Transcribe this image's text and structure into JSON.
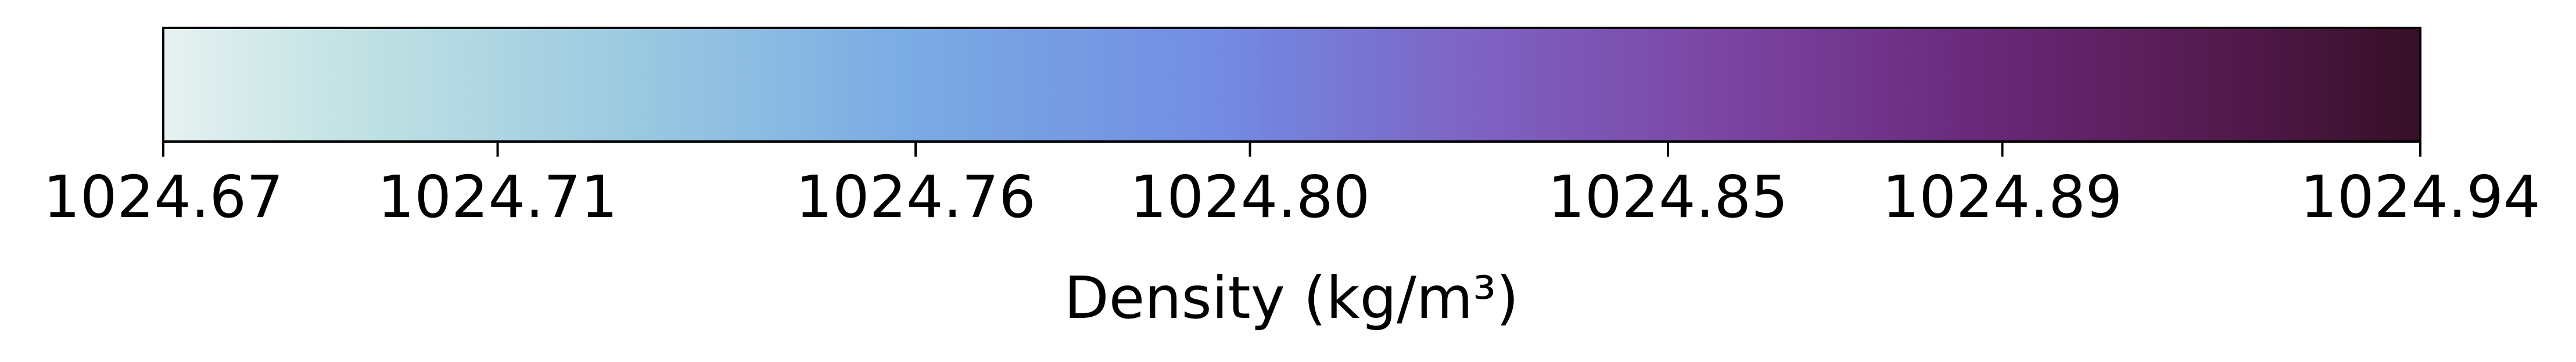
{
  "chart_data": {
    "type": "colorbar",
    "orientation": "horizontal",
    "colormap": "dense",
    "xlabel": "Density (kg/m³)",
    "range": [
      1024.67,
      1024.94
    ],
    "ticks": [
      {
        "value": 1024.67,
        "label": "1024.67"
      },
      {
        "value": 1024.71,
        "label": "1024.71"
      },
      {
        "value": 1024.76,
        "label": "1024.76"
      },
      {
        "value": 1024.8,
        "label": "1024.80"
      },
      {
        "value": 1024.85,
        "label": "1024.85"
      },
      {
        "value": 1024.89,
        "label": "1024.89"
      },
      {
        "value": 1024.94,
        "label": "1024.94"
      }
    ],
    "color_stops": [
      {
        "position": 0.0,
        "color": "#e6f1f1"
      },
      {
        "position": 0.08,
        "color": "#c3e3e4"
      },
      {
        "position": 0.2,
        "color": "#9dcbe1"
      },
      {
        "position": 0.33,
        "color": "#7aabe3"
      },
      {
        "position": 0.46,
        "color": "#738ee3"
      },
      {
        "position": 0.5,
        "color": "#7580da"
      },
      {
        "position": 0.58,
        "color": "#7e63c4"
      },
      {
        "position": 0.69,
        "color": "#7b45a3"
      },
      {
        "position": 0.8,
        "color": "#6a2a7c"
      },
      {
        "position": 0.91,
        "color": "#541a4f"
      },
      {
        "position": 1.0,
        "color": "#360f26"
      }
    ]
  }
}
